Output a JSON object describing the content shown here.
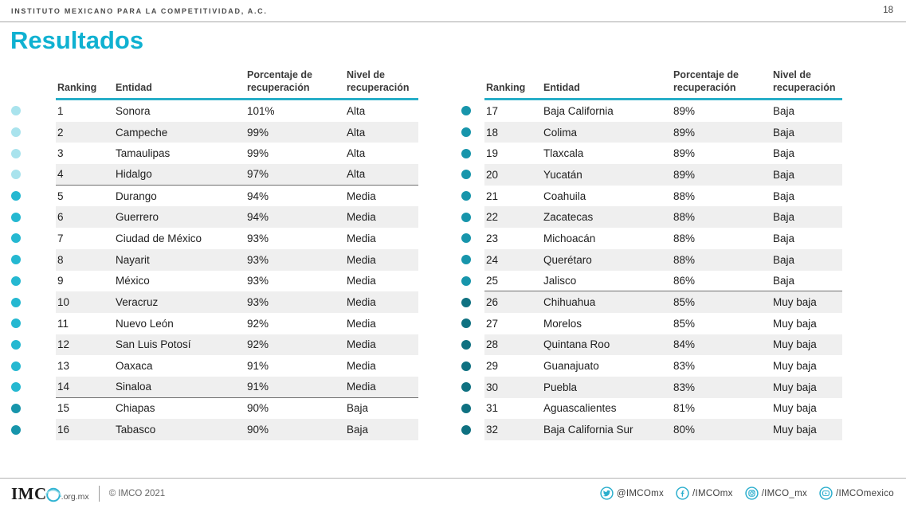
{
  "header": {
    "org": "INSTITUTO MEXICANO PARA LA COMPETITIVIDAD, A.C.",
    "page_number": "18"
  },
  "title": "Resultados",
  "table_headers": {
    "ranking": "Ranking",
    "entidad": "Entidad",
    "porcentaje_line1": "Porcentaje de",
    "porcentaje_line2": "recuperación",
    "nivel_line1": "Nivel de",
    "nivel_line2": "recuperación"
  },
  "colors": {
    "accent": "#0fb1d1",
    "header_rule": "#27aec8",
    "alt_row": "#efefef",
    "levels": {
      "Alta": "#a9e3ed",
      "Media": "#25b8d1",
      "Baja": "#1795ab",
      "Muy baja": "#0f7181"
    }
  },
  "tables": [
    {
      "rows": [
        {
          "rank": "1",
          "entidad": "Sonora",
          "pct": "101%",
          "nivel": "Alta"
        },
        {
          "rank": "2",
          "entidad": "Campeche",
          "pct": "99%",
          "nivel": "Alta"
        },
        {
          "rank": "3",
          "entidad": "Tamaulipas",
          "pct": "99%",
          "nivel": "Alta"
        },
        {
          "rank": "4",
          "entidad": "Hidalgo",
          "pct": "97%",
          "nivel": "Alta"
        },
        {
          "rank": "5",
          "entidad": "Durango",
          "pct": "94%",
          "nivel": "Media"
        },
        {
          "rank": "6",
          "entidad": "Guerrero",
          "pct": "94%",
          "nivel": "Media"
        },
        {
          "rank": "7",
          "entidad": "Ciudad de México",
          "pct": "93%",
          "nivel": "Media"
        },
        {
          "rank": "8",
          "entidad": "Nayarit",
          "pct": "93%",
          "nivel": "Media"
        },
        {
          "rank": "9",
          "entidad": "México",
          "pct": "93%",
          "nivel": "Media"
        },
        {
          "rank": "10",
          "entidad": "Veracruz",
          "pct": "93%",
          "nivel": "Media"
        },
        {
          "rank": "11",
          "entidad": "Nuevo León",
          "pct": "92%",
          "nivel": "Media"
        },
        {
          "rank": "12",
          "entidad": "San Luis Potosí",
          "pct": "92%",
          "nivel": "Media"
        },
        {
          "rank": "13",
          "entidad": "Oaxaca",
          "pct": "91%",
          "nivel": "Media"
        },
        {
          "rank": "14",
          "entidad": "Sinaloa",
          "pct": "91%",
          "nivel": "Media"
        },
        {
          "rank": "15",
          "entidad": "Chiapas",
          "pct": "90%",
          "nivel": "Baja"
        },
        {
          "rank": "16",
          "entidad": "Tabasco",
          "pct": "90%",
          "nivel": "Baja"
        }
      ]
    },
    {
      "rows": [
        {
          "rank": "17",
          "entidad": "Baja California",
          "pct": "89%",
          "nivel": "Baja"
        },
        {
          "rank": "18",
          "entidad": "Colima",
          "pct": "89%",
          "nivel": "Baja"
        },
        {
          "rank": "19",
          "entidad": "Tlaxcala",
          "pct": "89%",
          "nivel": "Baja"
        },
        {
          "rank": "20",
          "entidad": "Yucatán",
          "pct": "89%",
          "nivel": "Baja"
        },
        {
          "rank": "21",
          "entidad": "Coahuila",
          "pct": "88%",
          "nivel": "Baja"
        },
        {
          "rank": "22",
          "entidad": "Zacatecas",
          "pct": "88%",
          "nivel": "Baja"
        },
        {
          "rank": "23",
          "entidad": "Michoacán",
          "pct": "88%",
          "nivel": "Baja"
        },
        {
          "rank": "24",
          "entidad": "Querétaro",
          "pct": "88%",
          "nivel": "Baja"
        },
        {
          "rank": "25",
          "entidad": "Jalisco",
          "pct": "86%",
          "nivel": "Baja"
        },
        {
          "rank": "26",
          "entidad": "Chihuahua",
          "pct": "85%",
          "nivel": "Muy baja"
        },
        {
          "rank": "27",
          "entidad": "Morelos",
          "pct": "85%",
          "nivel": "Muy baja"
        },
        {
          "rank": "28",
          "entidad": "Quintana Roo",
          "pct": "84%",
          "nivel": "Muy baja"
        },
        {
          "rank": "29",
          "entidad": "Guanajuato",
          "pct": "83%",
          "nivel": "Muy baja"
        },
        {
          "rank": "30",
          "entidad": "Puebla",
          "pct": "83%",
          "nivel": "Muy baja"
        },
        {
          "rank": "31",
          "entidad": "Aguascalientes",
          "pct": "81%",
          "nivel": "Muy baja"
        },
        {
          "rank": "32",
          "entidad": "Baja California Sur",
          "pct": "80%",
          "nivel": "Muy baja"
        }
      ]
    }
  ],
  "footer": {
    "logo_imc": "IMC",
    "logo_suffix": ".org.mx",
    "copyright": "© IMCO 2021",
    "social": [
      {
        "icon": "twitter-icon",
        "label": "@IMCOmx"
      },
      {
        "icon": "facebook-icon",
        "label": "/IMCOmx"
      },
      {
        "icon": "instagram-icon",
        "label": "/IMCO_mx"
      },
      {
        "icon": "youtube-icon",
        "label": "/IMCOmexico"
      }
    ]
  }
}
